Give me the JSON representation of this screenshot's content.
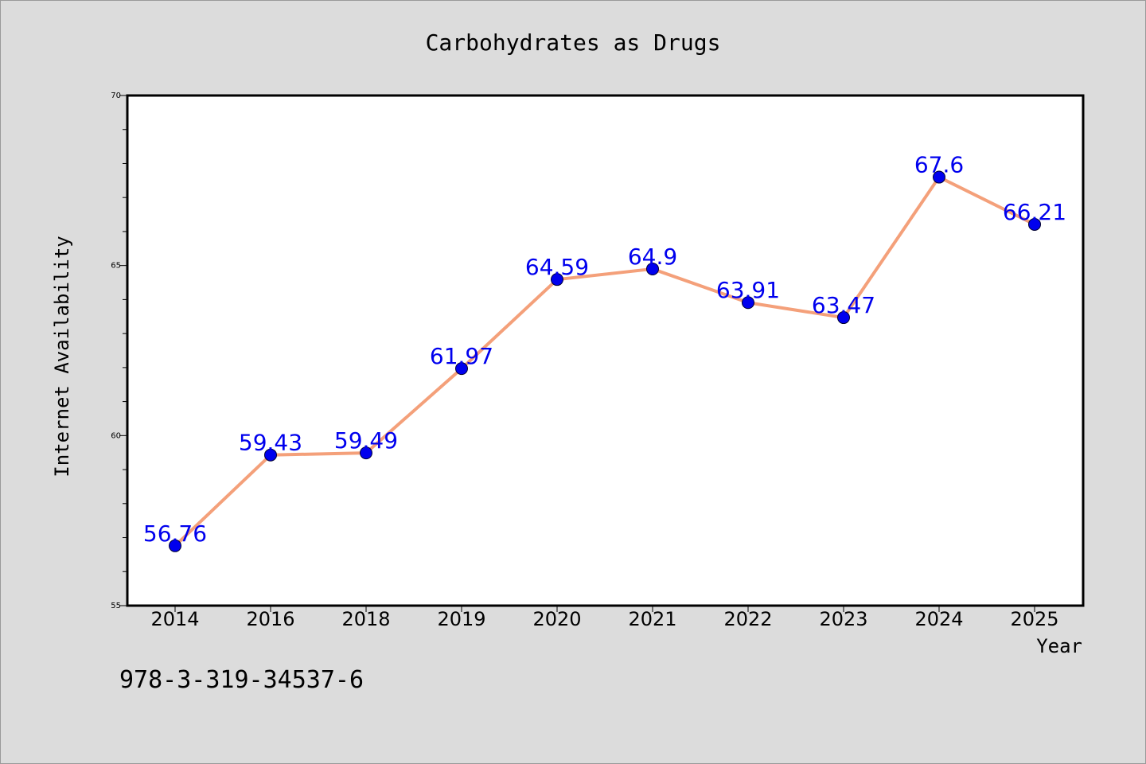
{
  "page": {
    "footer_text": "978-3-319-34537-6"
  },
  "colors": {
    "background": "#dcdcdc",
    "plot_bg": "#ffffff",
    "line": "#f4a07a",
    "marker": "#0000ee",
    "label": "#0000ee",
    "axis": "#000000"
  },
  "chart_data": {
    "type": "line",
    "title": "Carbohydrates as Drugs",
    "xlabel": "Year",
    "ylabel": "Internet Availability",
    "categories": [
      "2014",
      "2016",
      "2018",
      "2019",
      "2020",
      "2021",
      "2022",
      "2023",
      "2024",
      "2025"
    ],
    "series": [
      {
        "values": [
          56.76,
          59.43,
          59.49,
          61.97,
          64.59,
          64.9,
          63.91,
          63.47,
          67.6,
          66.21
        ],
        "labels": [
          "56.76",
          "59.43",
          "59.49",
          "61.97",
          "64.59",
          "64.9",
          "63.91",
          "63.47",
          "67.6",
          "66.21"
        ]
      }
    ],
    "ylim": [
      55,
      70
    ],
    "y_ticks": [
      "55",
      "60",
      "65",
      "70"
    ],
    "y_minor_step": 1,
    "grid": false,
    "legend": "none",
    "data_labels": true
  }
}
